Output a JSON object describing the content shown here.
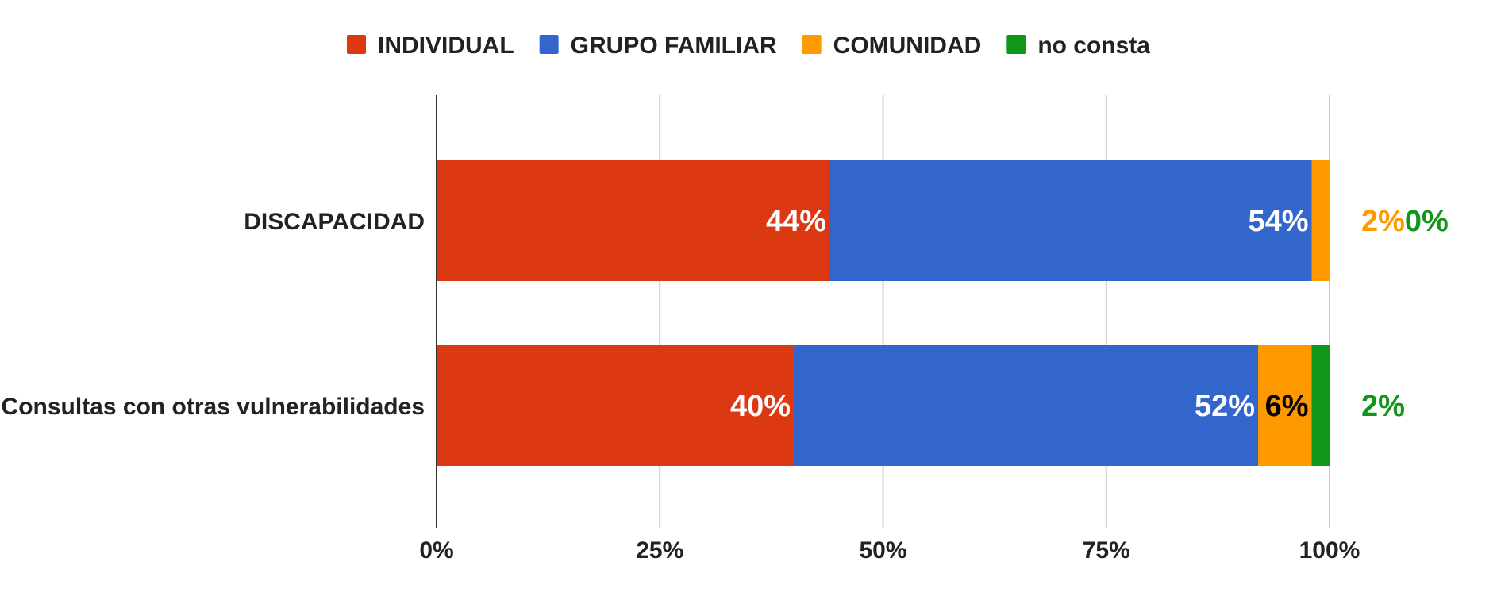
{
  "chart_data": {
    "type": "bar",
    "orientation": "horizontal",
    "stacked": "percent",
    "title": "",
    "xlabel": "",
    "ylabel": "",
    "xlim": [
      0,
      100
    ],
    "x_ticks": [
      "0%",
      "25%",
      "50%",
      "75%",
      "100%"
    ],
    "grid": true,
    "legend_position": "top",
    "categories": [
      "DISCAPACIDAD",
      "Consultas con otras vulnerabilidades"
    ],
    "series": [
      {
        "name": "INDIVIDUAL",
        "color": "#dc3912",
        "values": [
          44,
          40
        ],
        "labels": [
          "44%",
          "40%"
        ]
      },
      {
        "name": "GRUPO FAMILIAR",
        "color": "#3366cc",
        "values": [
          54,
          52
        ],
        "labels": [
          "54%",
          "52%"
        ]
      },
      {
        "name": "COMUNIDAD",
        "color": "#ff9900",
        "values": [
          2,
          6
        ],
        "labels": [
          "2%",
          "6%"
        ]
      },
      {
        "name": "no consta",
        "color": "#109618",
        "values": [
          0,
          2
        ],
        "labels": [
          "0%",
          "2%"
        ]
      }
    ]
  }
}
